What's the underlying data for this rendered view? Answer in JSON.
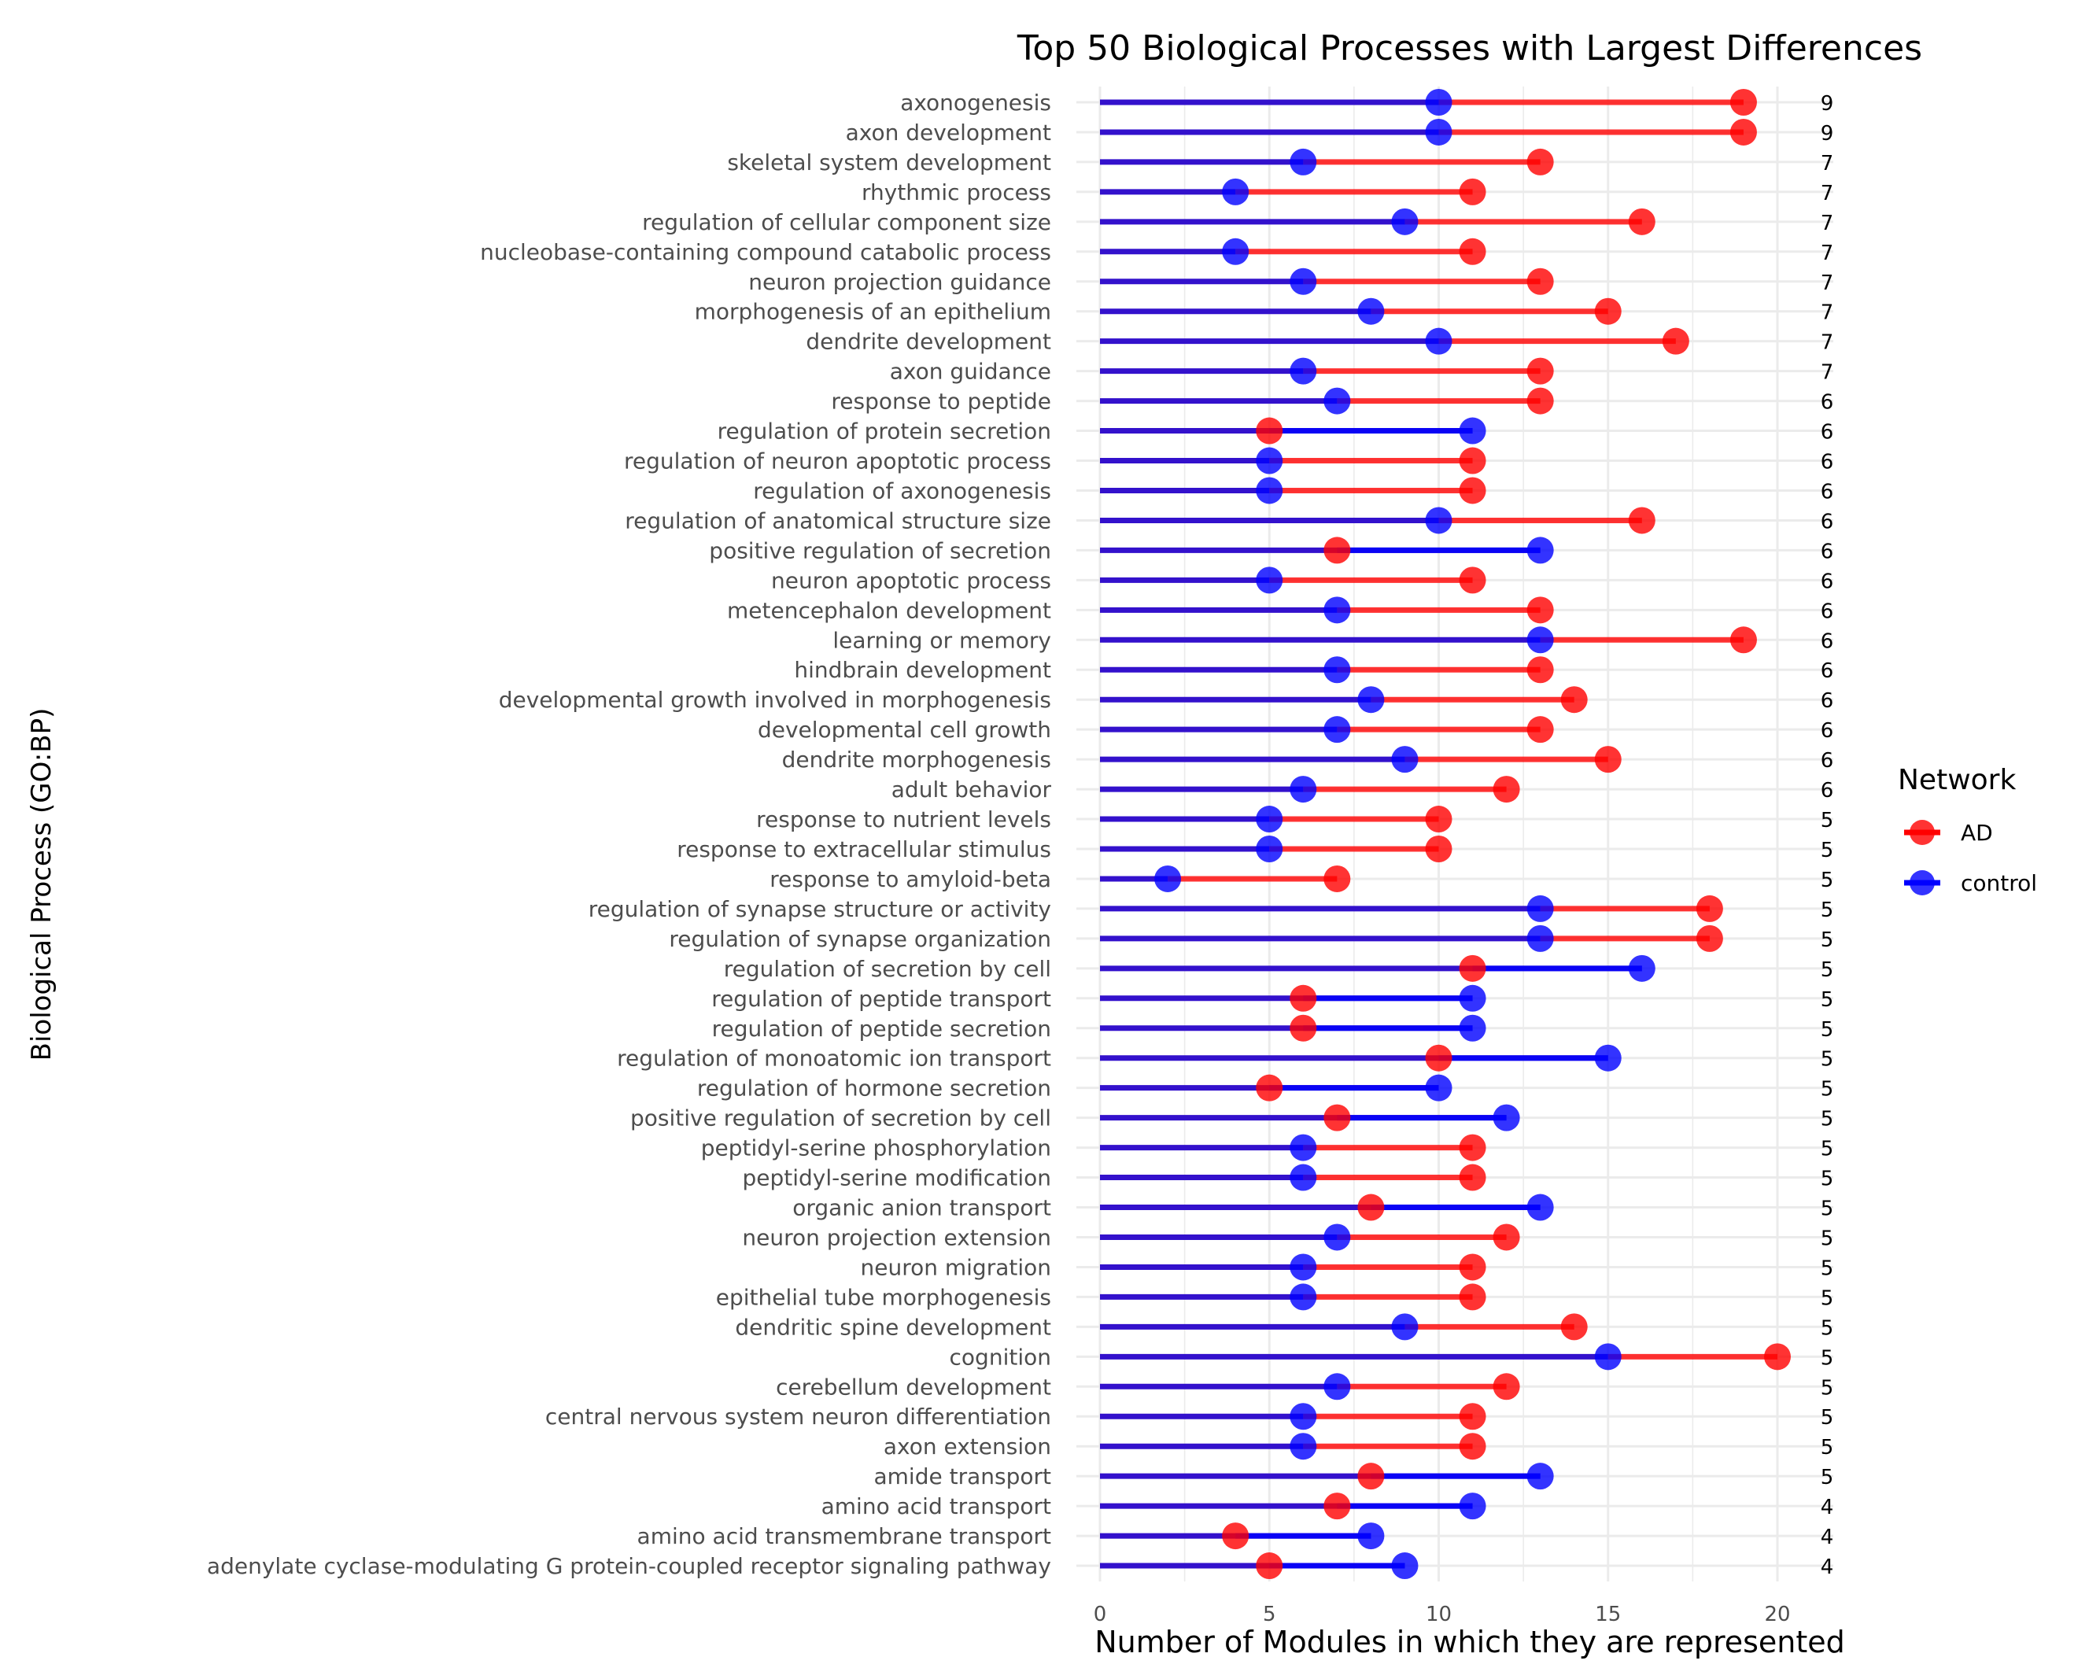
{
  "chart_data": {
    "type": "dumbbell",
    "title": "Top 50 Biological Processes with Largest Differences",
    "xlabel": "Number of Modules in which they are represented",
    "ylabel": "Biological Process (GO:BP)",
    "xlim": [
      0,
      21
    ],
    "xticks": [
      0,
      5,
      10,
      15,
      20
    ],
    "grid": true,
    "legend": {
      "title": "Network",
      "position": "right",
      "items": [
        {
          "name": "AD",
          "color": "#ff0000"
        },
        {
          "name": "control",
          "color": "#0000ff"
        }
      ]
    },
    "colors": {
      "ad": "#ff0000",
      "control": "#0000ff",
      "stem": "#3311cc"
    },
    "rows": [
      {
        "label": "axonogenesis",
        "ad": 19,
        "control": 10,
        "diff": "9"
      },
      {
        "label": "axon development",
        "ad": 19,
        "control": 10,
        "diff": "9"
      },
      {
        "label": "skeletal system development",
        "ad": 13,
        "control": 6,
        "diff": "7"
      },
      {
        "label": "rhythmic process",
        "ad": 11,
        "control": 4,
        "diff": "7"
      },
      {
        "label": "regulation of cellular component size",
        "ad": 16,
        "control": 9,
        "diff": "7"
      },
      {
        "label": "nucleobase-containing compound catabolic process",
        "ad": 11,
        "control": 4,
        "diff": "7"
      },
      {
        "label": "neuron projection guidance",
        "ad": 13,
        "control": 6,
        "diff": "7"
      },
      {
        "label": "morphogenesis of an epithelium",
        "ad": 15,
        "control": 8,
        "diff": "7"
      },
      {
        "label": "dendrite development",
        "ad": 17,
        "control": 10,
        "diff": "7"
      },
      {
        "label": "axon guidance",
        "ad": 13,
        "control": 6,
        "diff": "7"
      },
      {
        "label": "response to peptide",
        "ad": 13,
        "control": 7,
        "diff": "6"
      },
      {
        "label": "regulation of protein secretion",
        "ad": 5,
        "control": 11,
        "diff": "6"
      },
      {
        "label": "regulation of neuron apoptotic process",
        "ad": 11,
        "control": 5,
        "diff": "6"
      },
      {
        "label": "regulation of axonogenesis",
        "ad": 11,
        "control": 5,
        "diff": "6"
      },
      {
        "label": "regulation of anatomical structure size",
        "ad": 16,
        "control": 10,
        "diff": "6"
      },
      {
        "label": "positive regulation of secretion",
        "ad": 7,
        "control": 13,
        "diff": "6"
      },
      {
        "label": "neuron apoptotic process",
        "ad": 11,
        "control": 5,
        "diff": "6"
      },
      {
        "label": "metencephalon development",
        "ad": 13,
        "control": 7,
        "diff": "6"
      },
      {
        "label": "learning or memory",
        "ad": 19,
        "control": 13,
        "diff": "6"
      },
      {
        "label": "hindbrain development",
        "ad": 13,
        "control": 7,
        "diff": "6"
      },
      {
        "label": "developmental growth involved in morphogenesis",
        "ad": 14,
        "control": 8,
        "diff": "6"
      },
      {
        "label": "developmental cell growth",
        "ad": 13,
        "control": 7,
        "diff": "6"
      },
      {
        "label": "dendrite morphogenesis",
        "ad": 15,
        "control": 9,
        "diff": "6"
      },
      {
        "label": "adult behavior",
        "ad": 12,
        "control": 6,
        "diff": "6"
      },
      {
        "label": "response to nutrient levels",
        "ad": 10,
        "control": 5,
        "diff": "5"
      },
      {
        "label": "response to extracellular stimulus",
        "ad": 10,
        "control": 5,
        "diff": "5"
      },
      {
        "label": "response to amyloid-beta",
        "ad": 7,
        "control": 2,
        "diff": "5"
      },
      {
        "label": "regulation of synapse structure or activity",
        "ad": 18,
        "control": 13,
        "diff": "5"
      },
      {
        "label": "regulation of synapse organization",
        "ad": 18,
        "control": 13,
        "diff": "5"
      },
      {
        "label": "regulation of secretion by cell",
        "ad": 11,
        "control": 16,
        "diff": "5"
      },
      {
        "label": "regulation of peptide transport",
        "ad": 6,
        "control": 11,
        "diff": "5"
      },
      {
        "label": "regulation of peptide secretion",
        "ad": 6,
        "control": 11,
        "diff": "5"
      },
      {
        "label": "regulation of monoatomic ion transport",
        "ad": 10,
        "control": 15,
        "diff": "5"
      },
      {
        "label": "regulation of hormone secretion",
        "ad": 5,
        "control": 10,
        "diff": "5"
      },
      {
        "label": "positive regulation of secretion by cell",
        "ad": 7,
        "control": 12,
        "diff": "5"
      },
      {
        "label": "peptidyl-serine phosphorylation",
        "ad": 11,
        "control": 6,
        "diff": "5"
      },
      {
        "label": "peptidyl-serine modification",
        "ad": 11,
        "control": 6,
        "diff": "5"
      },
      {
        "label": "organic anion transport",
        "ad": 8,
        "control": 13,
        "diff": "5"
      },
      {
        "label": "neuron projection extension",
        "ad": 12,
        "control": 7,
        "diff": "5"
      },
      {
        "label": "neuron migration",
        "ad": 11,
        "control": 6,
        "diff": "5"
      },
      {
        "label": "epithelial tube morphogenesis",
        "ad": 11,
        "control": 6,
        "diff": "5"
      },
      {
        "label": "dendritic spine development",
        "ad": 14,
        "control": 9,
        "diff": "5"
      },
      {
        "label": "cognition",
        "ad": 20,
        "control": 15,
        "diff": "5"
      },
      {
        "label": "cerebellum development",
        "ad": 12,
        "control": 7,
        "diff": "5"
      },
      {
        "label": "central nervous system neuron differentiation",
        "ad": 11,
        "control": 6,
        "diff": "5"
      },
      {
        "label": "axon extension",
        "ad": 11,
        "control": 6,
        "diff": "5"
      },
      {
        "label": "amide transport",
        "ad": 8,
        "control": 13,
        "diff": "5"
      },
      {
        "label": "amino acid transport",
        "ad": 7,
        "control": 11,
        "diff": "4"
      },
      {
        "label": "amino acid transmembrane transport",
        "ad": 4,
        "control": 8,
        "diff": "4"
      },
      {
        "label": "adenylate cyclase-modulating G protein-coupled receptor signaling pathway",
        "ad": 5,
        "control": 9,
        "diff": "4"
      }
    ]
  }
}
